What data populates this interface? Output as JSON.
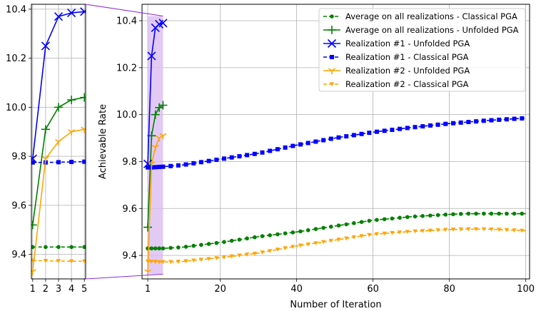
{
  "chart_data": [
    {
      "type": "line",
      "panel": "inset",
      "title": "",
      "xlabel": "",
      "ylabel": "",
      "xlim": [
        0.9,
        5.1
      ],
      "ylim": [
        9.3,
        10.42
      ],
      "x_ticks": [
        "1",
        "2",
        "3",
        "4",
        "5"
      ],
      "y_ticks": [
        "9.4",
        "9.6",
        "9.8",
        "10.0",
        "10.2",
        "10.4"
      ],
      "grid": true
    },
    {
      "type": "line",
      "panel": "main",
      "title": "",
      "xlabel": "Number of Iteration",
      "ylabel": "Achievable Rate",
      "xlim": [
        -0.5,
        101
      ],
      "ylim": [
        9.3,
        10.47
      ],
      "x_ticks": [
        "1",
        "20",
        "40",
        "60",
        "80",
        "100"
      ],
      "y_ticks": [
        "9.4",
        "9.6",
        "9.8",
        "10.0",
        "10.2",
        "10.4"
      ],
      "grid": true,
      "highlight": {
        "x_range": [
          1,
          5
        ],
        "y_range": [
          9.32,
          10.42
        ],
        "color": "#d9b8f2"
      },
      "legend_position": "top-right",
      "series": [
        {
          "name": "Average on all realizations - Classical PGA",
          "color": "#008000",
          "style": "dashed",
          "marker": "circle",
          "x": [
            1,
            2,
            3,
            4,
            5,
            10,
            20,
            30,
            40,
            50,
            60,
            70,
            80,
            85,
            90,
            100
          ],
          "y": [
            9.43,
            9.43,
            9.43,
            9.43,
            9.43,
            9.435,
            9.455,
            9.48,
            9.5,
            9.525,
            9.55,
            9.565,
            9.575,
            9.578,
            9.578,
            9.578
          ]
        },
        {
          "name": "Average on all realizations - Unfolded PGA",
          "color": "#008000",
          "style": "solid",
          "marker": "plus",
          "x": [
            1,
            2,
            3,
            4,
            5
          ],
          "y": [
            9.52,
            9.91,
            10.0,
            10.03,
            10.04
          ]
        },
        {
          "name": "Realization #1 - Unfolded PGA",
          "color": "#0000ff",
          "style": "solid",
          "marker": "x",
          "x": [
            1,
            2,
            3,
            4,
            5
          ],
          "y": [
            9.79,
            10.25,
            10.37,
            10.385,
            10.39
          ]
        },
        {
          "name": "Realization #1 - Classical PGA",
          "color": "#0000ff",
          "style": "dashed",
          "marker": "square",
          "x": [
            1,
            2,
            3,
            4,
            5,
            10,
            20,
            30,
            40,
            50,
            60,
            70,
            80,
            90,
            100
          ],
          "y": [
            9.775,
            9.775,
            9.776,
            9.777,
            9.778,
            9.785,
            9.81,
            9.835,
            9.87,
            9.9,
            9.925,
            9.945,
            9.962,
            9.975,
            9.985
          ]
        },
        {
          "name": "Realization #2 - Unfolded PGA",
          "color": "#ffa500",
          "style": "solid",
          "marker": "tri_down",
          "x": [
            1,
            2,
            3,
            4,
            5
          ],
          "y": [
            9.33,
            9.79,
            9.86,
            9.9,
            9.91
          ]
        },
        {
          "name": "Realization #2 - Classical PGA",
          "color": "#ffa500",
          "style": "dashed",
          "marker": "triangle_down",
          "x": [
            1,
            2,
            3,
            4,
            5,
            10,
            20,
            30,
            40,
            50,
            60,
            70,
            80,
            85,
            90,
            100
          ],
          "y": [
            9.375,
            9.374,
            9.373,
            9.372,
            9.372,
            9.374,
            9.39,
            9.41,
            9.44,
            9.465,
            9.49,
            9.502,
            9.51,
            9.512,
            9.512,
            9.505
          ]
        }
      ]
    }
  ]
}
